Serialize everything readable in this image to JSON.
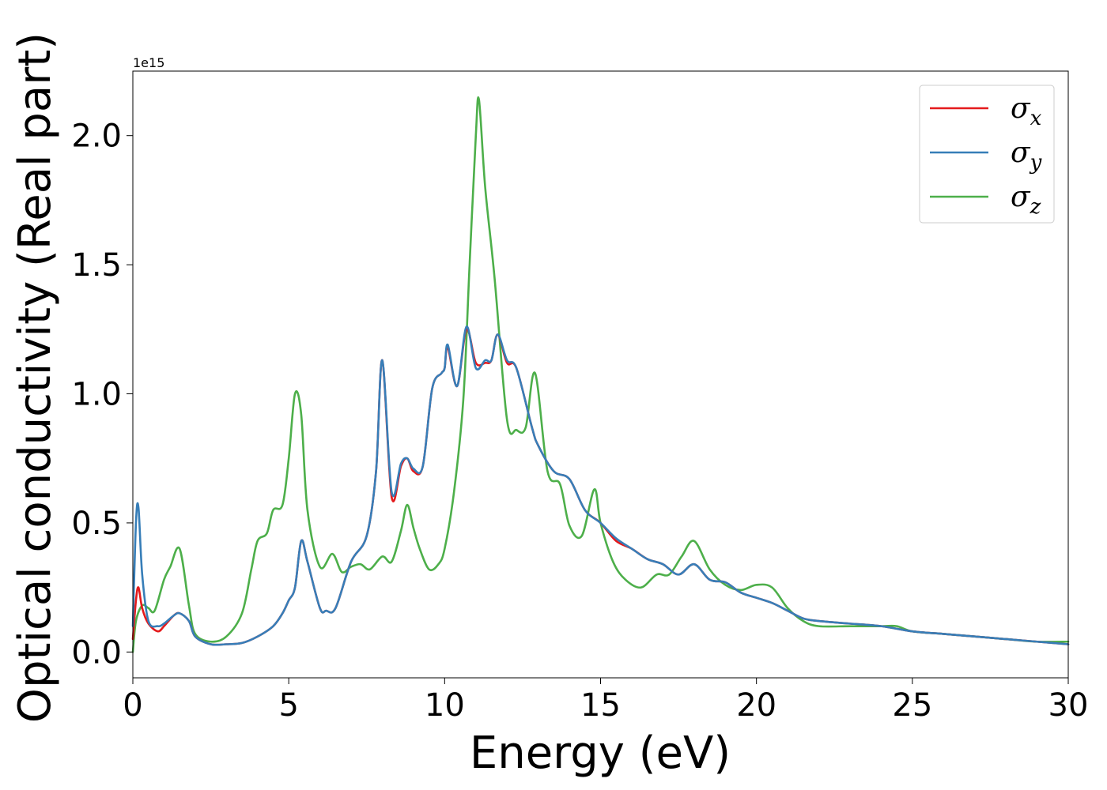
{
  "chart_data": {
    "type": "line",
    "title": "",
    "xlabel": "Energy (eV)",
    "ylabel": "Optical conductivity (Real part)",
    "y_offset_text": "1e15",
    "y_scale_factor": 1000000000000000.0,
    "xlim": [
      0,
      30
    ],
    "ylim": [
      -0.1,
      2.25
    ],
    "xticks": [
      0,
      5,
      10,
      15,
      20,
      25,
      30
    ],
    "xtick_labels": [
      "0",
      "5",
      "10",
      "15",
      "20",
      "25",
      "30"
    ],
    "yticks": [
      0.0,
      0.5,
      1.0,
      1.5,
      2.0
    ],
    "ytick_labels": [
      "0.0",
      "0.5",
      "1.0",
      "1.5",
      "2.0"
    ],
    "grid": false,
    "legend_position": "top-right",
    "series": [
      {
        "name": "σ",
        "subscript": "x",
        "color": "#e41a1c",
        "x": [
          0,
          0.1,
          0.18,
          0.3,
          0.5,
          0.8,
          1.0,
          1.3,
          1.5,
          1.8,
          2.0,
          2.5,
          3.0,
          3.5,
          4.0,
          4.5,
          4.8,
          5.0,
          5.2,
          5.4,
          5.6,
          6.0,
          6.2,
          6.5,
          7.0,
          7.5,
          7.8,
          8.0,
          8.3,
          8.6,
          8.8,
          9.0,
          9.3,
          9.6,
          9.9,
          10.0,
          10.1,
          10.4,
          10.7,
          11.0,
          11.3,
          11.5,
          11.7,
          12.0,
          12.3,
          12.8,
          13.0,
          13.5,
          14.0,
          14.5,
          15.0,
          15.5,
          16.0,
          16.5,
          17.0,
          17.5,
          18.0,
          18.5,
          19.0,
          19.5,
          20.0,
          20.5,
          21.0,
          21.5,
          22.0,
          23.0,
          24.0,
          25.0,
          26.0,
          27.0,
          28.0,
          29.0,
          30.0
        ],
        "values": [
          0.05,
          0.2,
          0.25,
          0.17,
          0.11,
          0.08,
          0.1,
          0.14,
          0.15,
          0.12,
          0.06,
          0.03,
          0.03,
          0.035,
          0.06,
          0.1,
          0.15,
          0.2,
          0.25,
          0.43,
          0.35,
          0.17,
          0.16,
          0.17,
          0.35,
          0.45,
          0.7,
          1.13,
          0.6,
          0.72,
          0.75,
          0.7,
          0.72,
          1.02,
          1.08,
          1.1,
          1.18,
          1.03,
          1.25,
          1.12,
          1.12,
          1.13,
          1.23,
          1.12,
          1.1,
          0.87,
          0.8,
          0.7,
          0.67,
          0.55,
          0.5,
          0.43,
          0.4,
          0.36,
          0.34,
          0.3,
          0.34,
          0.28,
          0.27,
          0.23,
          0.21,
          0.19,
          0.16,
          0.13,
          0.12,
          0.11,
          0.1,
          0.08,
          0.07,
          0.06,
          0.05,
          0.04,
          0.03
        ]
      },
      {
        "name": "σ",
        "subscript": "y",
        "color": "#377eb8",
        "x": [
          0,
          0.1,
          0.18,
          0.3,
          0.5,
          0.8,
          1.0,
          1.3,
          1.5,
          1.8,
          2.0,
          2.5,
          3.0,
          3.5,
          4.0,
          4.5,
          4.8,
          5.0,
          5.2,
          5.4,
          5.6,
          6.0,
          6.2,
          6.5,
          7.0,
          7.5,
          7.8,
          8.0,
          8.3,
          8.6,
          8.8,
          9.0,
          9.3,
          9.6,
          9.9,
          10.0,
          10.1,
          10.4,
          10.7,
          11.0,
          11.3,
          11.5,
          11.7,
          12.0,
          12.3,
          12.8,
          13.0,
          13.5,
          14.0,
          14.5,
          15.0,
          15.5,
          16.0,
          16.5,
          17.0,
          17.5,
          18.0,
          18.5,
          19.0,
          19.5,
          20.0,
          20.5,
          21.0,
          21.5,
          22.0,
          23.0,
          24.0,
          25.0,
          26.0,
          27.0,
          28.0,
          29.0,
          30.0
        ],
        "values": [
          0.1,
          0.5,
          0.56,
          0.3,
          0.12,
          0.1,
          0.11,
          0.14,
          0.15,
          0.12,
          0.06,
          0.03,
          0.03,
          0.035,
          0.06,
          0.1,
          0.15,
          0.2,
          0.25,
          0.43,
          0.35,
          0.17,
          0.16,
          0.17,
          0.35,
          0.45,
          0.7,
          1.13,
          0.62,
          0.73,
          0.75,
          0.71,
          0.72,
          1.02,
          1.08,
          1.1,
          1.19,
          1.03,
          1.26,
          1.1,
          1.13,
          1.13,
          1.23,
          1.13,
          1.1,
          0.87,
          0.8,
          0.7,
          0.67,
          0.55,
          0.5,
          0.44,
          0.4,
          0.36,
          0.34,
          0.3,
          0.34,
          0.28,
          0.27,
          0.23,
          0.21,
          0.19,
          0.16,
          0.13,
          0.12,
          0.11,
          0.1,
          0.08,
          0.07,
          0.06,
          0.05,
          0.04,
          0.03
        ]
      },
      {
        "name": "σ",
        "subscript": "z",
        "color": "#4daf4a",
        "x": [
          0,
          0.1,
          0.3,
          0.5,
          0.7,
          1.0,
          1.2,
          1.5,
          1.8,
          2.0,
          2.5,
          3.0,
          3.5,
          3.8,
          4.0,
          4.3,
          4.5,
          4.8,
          5.0,
          5.2,
          5.4,
          5.6,
          6.0,
          6.4,
          6.7,
          7.0,
          7.3,
          7.6,
          8.0,
          8.3,
          8.6,
          8.8,
          9.0,
          9.2,
          9.5,
          9.8,
          10.0,
          10.3,
          10.6,
          10.8,
          11.0,
          11.1,
          11.3,
          11.6,
          12.0,
          12.3,
          12.6,
          12.9,
          13.3,
          13.7,
          14.0,
          14.4,
          14.8,
          15.0,
          15.4,
          15.8,
          16.3,
          16.8,
          17.2,
          17.6,
          18.0,
          18.5,
          19.0,
          19.5,
          20.0,
          20.5,
          21.0,
          21.5,
          22.0,
          23.0,
          24.0,
          24.5,
          25.0,
          26.0,
          27.0,
          28.0,
          29.0,
          30.0
        ],
        "values": [
          0.0,
          0.12,
          0.18,
          0.17,
          0.16,
          0.28,
          0.33,
          0.4,
          0.18,
          0.07,
          0.04,
          0.06,
          0.15,
          0.32,
          0.43,
          0.46,
          0.55,
          0.57,
          0.75,
          1.0,
          0.92,
          0.55,
          0.33,
          0.38,
          0.31,
          0.33,
          0.34,
          0.32,
          0.37,
          0.35,
          0.47,
          0.57,
          0.48,
          0.4,
          0.32,
          0.34,
          0.4,
          0.62,
          0.98,
          1.5,
          2.0,
          2.14,
          1.8,
          1.45,
          0.9,
          0.86,
          0.87,
          1.08,
          0.7,
          0.65,
          0.49,
          0.45,
          0.63,
          0.5,
          0.35,
          0.28,
          0.25,
          0.3,
          0.3,
          0.37,
          0.43,
          0.32,
          0.26,
          0.24,
          0.26,
          0.25,
          0.17,
          0.12,
          0.1,
          0.1,
          0.1,
          0.1,
          0.08,
          0.07,
          0.06,
          0.05,
          0.04,
          0.04
        ]
      }
    ]
  }
}
